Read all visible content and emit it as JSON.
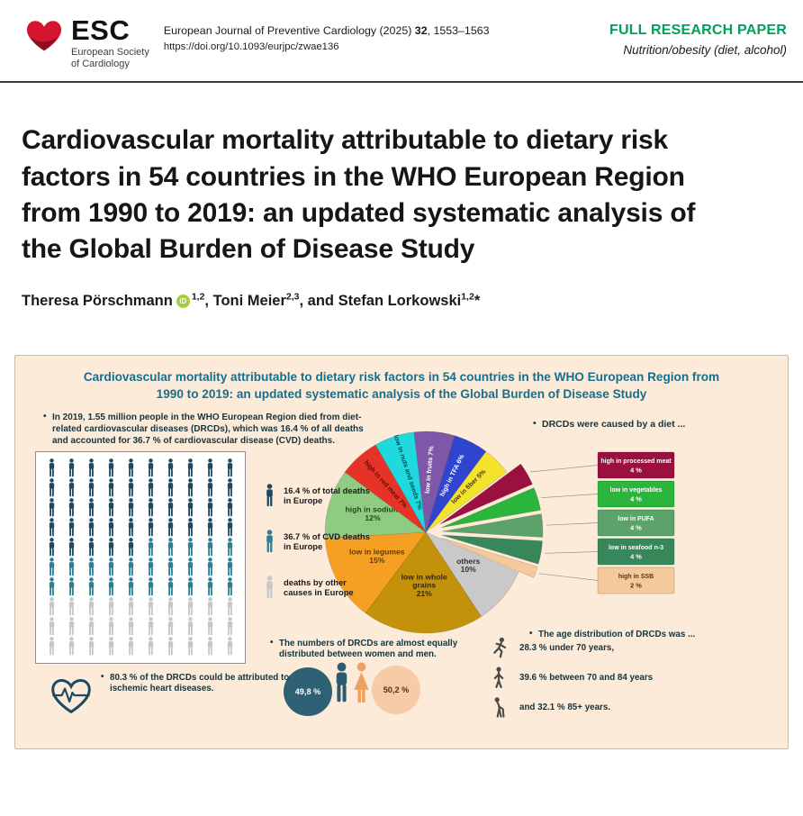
{
  "header": {
    "logo": {
      "title": "ESC",
      "subtitle_line1": "European Society",
      "subtitle_line2": "of Cardiology"
    },
    "journal": {
      "pre": "European Journal of Preventive Cardiology (2025) ",
      "volume": "32",
      "pages": ", 1553–1563"
    },
    "doi": "https://doi.org/10.1093/eurjpc/zwae136",
    "category": "FULL RESEARCH PAPER",
    "topic": "Nutrition/obesity (diet, alcohol)"
  },
  "title": "Cardiovascular mortality attributable to dietary risk factors in 54 countries in the WHO European Region from 1990 to 2019: an updated systematic analysis of the Global Burden of Disease Study",
  "authors": [
    {
      "name": "Theresa Pörschmann",
      "orcid": true,
      "sup": "1,2",
      "suffix": ", "
    },
    {
      "name": "Toni Meier",
      "orcid": false,
      "sup": "2,3",
      "suffix": ", and "
    },
    {
      "name": "Stefan Lorkowski",
      "orcid": false,
      "sup": "1,2",
      "suffix": "*"
    }
  ],
  "abstract": {
    "title": "Cardiovascular mortality attributable to dietary risk factors in 54 countries in the WHO European Region from 1990 to 2019: an updated systematic analysis of the Global Burden of Disease Study",
    "bullet_intro": "In 2019, 1.55 million people in the WHO European Region died from diet-related cardiovascular diseases (DRCDs), which was 16.4 % of all deaths and accounted for 36.7 % of cardiovascular disease (CVD) deaths.",
    "bullet_diet": "DRCDs were caused by a diet ...",
    "bullet_gender": "The numbers of DRCDs are almost equally distributed between women and men.",
    "bullet_age": "The age distribution of DRCDs was ...",
    "age_rows": [
      {
        "label": "28.3 % under 70 years,"
      },
      {
        "label": "39.6 % between 70 and 84 years"
      },
      {
        "label": "and 32.1 % 85+ years."
      }
    ],
    "bullet_ihd": "80.3 % of the DRCDs could be attributed to ischemic heart diseases."
  },
  "colors": {
    "esc_red": "#d5142e",
    "esc_dark_red": "#8e0e20",
    "category_green": "#00a05a",
    "abstract_bg": "#fcebd9",
    "abstract_title": "#166f8e",
    "figure_gray": "#4a4a4a",
    "man_figure": "#2c5a70",
    "woman_figure": "#eda15f",
    "heart_ecg": "#1e4a5f"
  },
  "chart_data": [
    {
      "type": "pictogram-waffle",
      "rows": 10,
      "cols": 10,
      "groups": [
        {
          "label": "16.4 % of total deaths in Europe",
          "color": "#1e4a5f",
          "count": 45
        },
        {
          "label": "36.7 % of CVD deaths in Europe",
          "color": "#2e7f95",
          "count": 25
        },
        {
          "label": "deaths by other causes in Europe",
          "color": "#c7c7c7",
          "count": 30
        }
      ]
    },
    {
      "type": "pie",
      "title": "DRCDs were caused by a diet ...",
      "unit": "%",
      "start_angle_deg": -30,
      "slices": [
        {
          "name": "low in nuts and seeds",
          "value": 7,
          "color": "#1fd9df",
          "label_color": "#0b4a4a",
          "exploded": false
        },
        {
          "name": "low in fruits",
          "value": 7,
          "color": "#7e57a8",
          "label_color": "#ffffff",
          "exploded": false
        },
        {
          "name": "high in TFA",
          "value": 6,
          "color": "#2f45cf",
          "label_color": "#ffffff",
          "exploded": false
        },
        {
          "name": "low in fiber",
          "value": 5,
          "color": "#f4e32c",
          "label_color": "#4a3a05",
          "exploded": false
        },
        {
          "name": "high in processed meat",
          "value": 4,
          "color": "#9c1040",
          "label_color": "#ffffff",
          "exploded": true
        },
        {
          "name": "low in vegetables",
          "value": 4,
          "color": "#2cb53c",
          "label_color": "#ffffff",
          "exploded": true
        },
        {
          "name": "low in PUFA",
          "value": 4,
          "color": "#5ba26b",
          "label_color": "#ffffff",
          "exploded": true
        },
        {
          "name": "low in seafood n-3",
          "value": 4,
          "color": "#37875a",
          "label_color": "#ffffff",
          "exploded": true
        },
        {
          "name": "high in SSB",
          "value": 2,
          "color": "#f5c99c",
          "label_color": "#5a3516",
          "exploded": true
        },
        {
          "name": "others",
          "value": 10,
          "color": "#c9c9c9",
          "label_color": "#333333",
          "exploded": false
        },
        {
          "name": "low in whole grains",
          "value": 21,
          "color": "#c3920a",
          "label_color": "#35260a",
          "exploded": false
        },
        {
          "name": "low in legumes",
          "value": 15,
          "color": "#f5a023",
          "label_color": "#5f3c08",
          "exploded": false
        },
        {
          "name": "high in sodium",
          "value": 12,
          "color": "#8fcb80",
          "label_color": "#1d4c17",
          "exploded": false
        },
        {
          "name": "high in red meat",
          "value": 7,
          "color": "#e73228",
          "label_color": "#5c0f08",
          "exploded": false
        }
      ]
    },
    {
      "type": "proportional-circles",
      "series": [
        {
          "label": "49,8 %",
          "value": 49.8,
          "color": "#2f6175"
        },
        {
          "label": "50,2 %",
          "value": 50.2,
          "color": "#f6cba6"
        }
      ]
    }
  ]
}
